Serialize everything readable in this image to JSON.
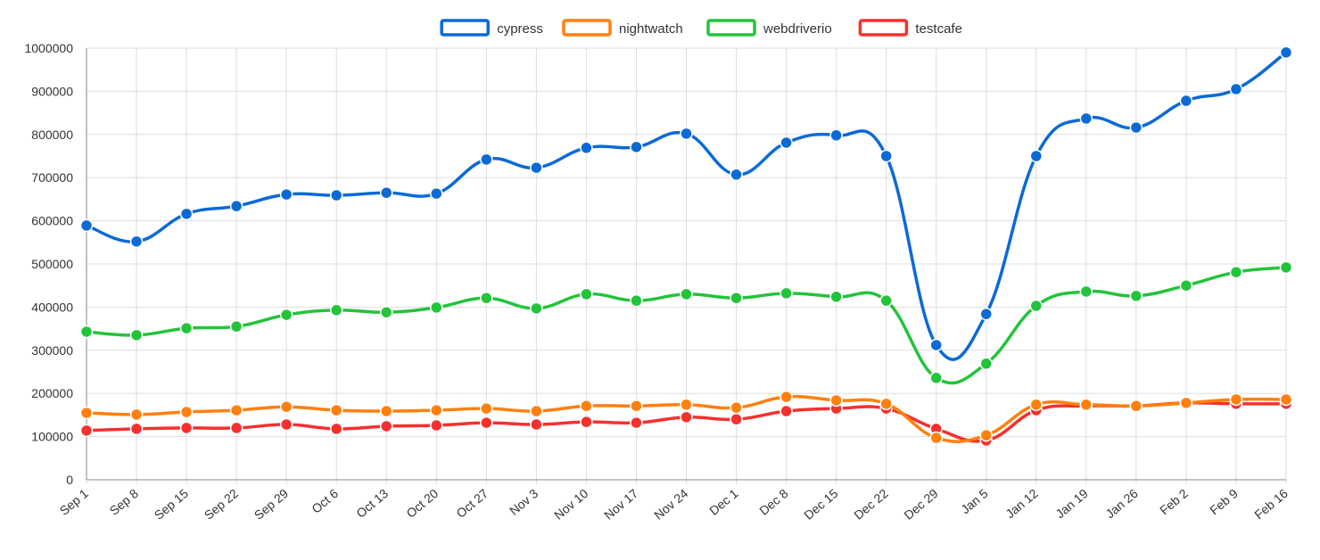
{
  "chart_data": {
    "type": "line",
    "title": "",
    "xlabel": "",
    "ylabel": "",
    "ylim": [
      0,
      1000000
    ],
    "yticks": [
      0,
      100000,
      200000,
      300000,
      400000,
      500000,
      600000,
      700000,
      800000,
      900000,
      1000000
    ],
    "grid": true,
    "legend_position": "top-center",
    "categories": [
      "Sep 1",
      "Sep 8",
      "Sep 15",
      "Sep 22",
      "Sep 29",
      "Oct 6",
      "Oct 13",
      "Oct 20",
      "Oct 27",
      "Nov 3",
      "Nov 10",
      "Nov 17",
      "Nov 24",
      "Dec 1",
      "Dec 8",
      "Dec 15",
      "Dec 22",
      "Dec 29",
      "Jan 5",
      "Jan 12",
      "Jan 19",
      "Jan 26",
      "Feb 2",
      "Feb 9",
      "Feb 16"
    ],
    "series": [
      {
        "name": "cypress",
        "color": "#0b6ad6",
        "values": [
          589000,
          552000,
          616000,
          634000,
          661000,
          659000,
          665000,
          663000,
          742000,
          723000,
          769000,
          771000,
          802000,
          707000,
          781000,
          798000,
          750000,
          312000,
          384000,
          750000,
          837000,
          816000,
          878000,
          905000,
          990000
        ]
      },
      {
        "name": "nightwatch",
        "color": "#ff800e",
        "values": [
          155000,
          151000,
          157000,
          161000,
          169000,
          161000,
          159000,
          161000,
          165000,
          159000,
          171000,
          171000,
          174000,
          167000,
          192000,
          184000,
          176000,
          97000,
          103000,
          174000,
          174000,
          171000,
          178000,
          186000,
          186000
        ]
      },
      {
        "name": "webdriverio",
        "color": "#22c43a",
        "values": [
          343000,
          335000,
          351000,
          355000,
          382000,
          393000,
          388000,
          399000,
          421000,
          397000,
          430000,
          415000,
          430000,
          421000,
          432000,
          424000,
          415000,
          236000,
          269000,
          403000,
          436000,
          426000,
          450000,
          481000,
          492000
        ]
      },
      {
        "name": "testcafe",
        "color": "#f5302e",
        "values": [
          114000,
          118000,
          120000,
          120000,
          128000,
          118000,
          124000,
          126000,
          132000,
          128000,
          134000,
          132000,
          145000,
          140000,
          159000,
          165000,
          165000,
          118000,
          91000,
          161000,
          171000,
          171000,
          178000,
          176000,
          176000
        ]
      }
    ]
  }
}
